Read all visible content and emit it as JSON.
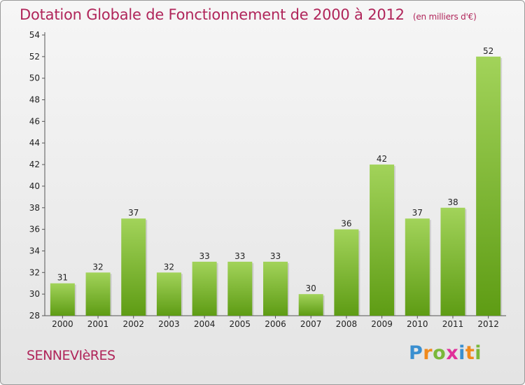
{
  "title": "Dotation Globale de Fonctionnement de 2000 à 2012",
  "subtitle": "(en milliers d'€)",
  "commune": "SENNEVIèRES",
  "brand": {
    "name": "Proxiti",
    "letters": [
      "P",
      "r",
      "o",
      "x",
      "i",
      "t",
      "i"
    ],
    "colors": [
      "#3a8fd0",
      "#f08a1c",
      "#7ab83a",
      "#e0309a",
      "#3a8fd0",
      "#f08a1c",
      "#7ab83a"
    ]
  },
  "colors": {
    "title": "#b0255a",
    "bar_light": "#a2d35a",
    "bar_dark": "#5e9c14"
  },
  "chart_data": {
    "type": "bar",
    "title": "Dotation Globale de Fonctionnement de 2000 à 2012",
    "subtitle": "(en milliers d'€)",
    "categories": [
      "2000",
      "2001",
      "2002",
      "2003",
      "2004",
      "2005",
      "2006",
      "2007",
      "2008",
      "2009",
      "2010",
      "2011",
      "2012"
    ],
    "values": [
      31,
      32,
      37,
      32,
      33,
      33,
      33,
      30,
      36,
      42,
      37,
      38,
      52
    ],
    "ylim": [
      28,
      54
    ],
    "yticks": [
      28,
      30,
      32,
      34,
      36,
      38,
      40,
      42,
      44,
      46,
      48,
      50,
      52,
      54
    ],
    "grid": false,
    "xlabel": "",
    "ylabel": ""
  }
}
